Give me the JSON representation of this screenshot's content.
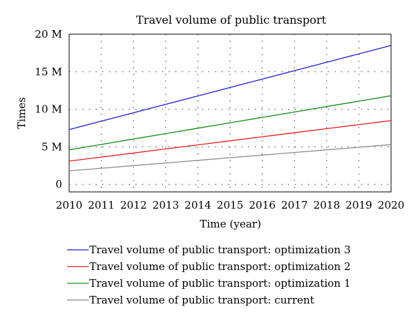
{
  "chart_data": {
    "type": "line",
    "title": "Travel volume of public transport",
    "xlabel": "Time (year)",
    "ylabel": "Times",
    "x": [
      2010,
      2011,
      2012,
      2013,
      2014,
      2015,
      2016,
      2017,
      2018,
      2019,
      2020
    ],
    "xlim": [
      2010,
      2020
    ],
    "ylim": [
      -1000000,
      20000000
    ],
    "y_ticks": [
      {
        "value": 20000000,
        "label": "20 M"
      },
      {
        "value": 15000000,
        "label": "15 M"
      },
      {
        "value": 10000000,
        "label": "10 M"
      },
      {
        "value": 5000000,
        "label": "5 M"
      },
      {
        "value": 0,
        "label": "0"
      }
    ],
    "x_tick_labels": [
      "2010",
      "2011",
      "2012",
      "2013",
      "2014",
      "2015",
      "2016",
      "2017",
      "2018",
      "2019",
      "2020"
    ],
    "grid": "dotted",
    "legend_position": "bottom",
    "series": [
      {
        "name": "Travel volume of public transport: optimization 3",
        "color": "#1f1fcc",
        "values": [
          7300000,
          8420000,
          9540000,
          10660000,
          11780000,
          12900000,
          14020000,
          15140000,
          16260000,
          17380000,
          18500000
        ]
      },
      {
        "name": "Travel volume of public transport: optimization 2",
        "color": "#e82020",
        "values": [
          3100000,
          3640000,
          4180000,
          4720000,
          5260000,
          5800000,
          6340000,
          6880000,
          7420000,
          7960000,
          8500000
        ]
      },
      {
        "name": "Travel volume of public transport: optimization 1",
        "color": "#1a8a1a",
        "values": [
          4600000,
          5320000,
          6040000,
          6760000,
          7480000,
          8200000,
          8920000,
          9640000,
          10360000,
          11080000,
          11800000
        ]
      },
      {
        "name": "Travel volume of public transport: current",
        "color": "#8c8c8c",
        "values": [
          1800000,
          2150000,
          2500000,
          2850000,
          3200000,
          3550000,
          3900000,
          4250000,
          4600000,
          4950000,
          5300000
        ]
      }
    ]
  }
}
